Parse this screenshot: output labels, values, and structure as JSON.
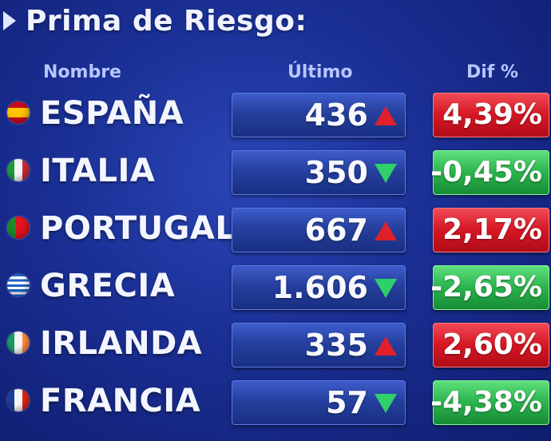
{
  "title": "Prima de Riesgo:",
  "headers": {
    "name": "Nombre",
    "last": "Último",
    "diff": "Dif %"
  },
  "rows": [
    {
      "name": "ESPAÑA",
      "value": "436",
      "diff": "4,39%",
      "trend": "up",
      "flag": "spain-flag-icon"
    },
    {
      "name": "ITALIA",
      "value": "350",
      "diff": "-0,45%",
      "trend": "down",
      "flag": "italy-flag-icon"
    },
    {
      "name": "PORTUGAL",
      "value": "667",
      "diff": "2,17%",
      "trend": "up",
      "flag": "portugal-flag-icon"
    },
    {
      "name": "GRECIA",
      "value": "1.606",
      "diff": "-2,65%",
      "trend": "down",
      "flag": "greece-flag-icon"
    },
    {
      "name": "IRLANDA",
      "value": "335",
      "diff": "2,60%",
      "trend": "up",
      "flag": "ireland-flag-icon"
    },
    {
      "name": "FRANCIA",
      "value": "57",
      "diff": "-4,38%",
      "trend": "down",
      "flag": "france-flag-icon"
    }
  ],
  "colors": {
    "background": "#1a2f94",
    "up_arrow": "#e0202a",
    "down_arrow": "#2fd06a",
    "diff_positive": "#d61624",
    "diff_negative": "#2ab34c"
  }
}
